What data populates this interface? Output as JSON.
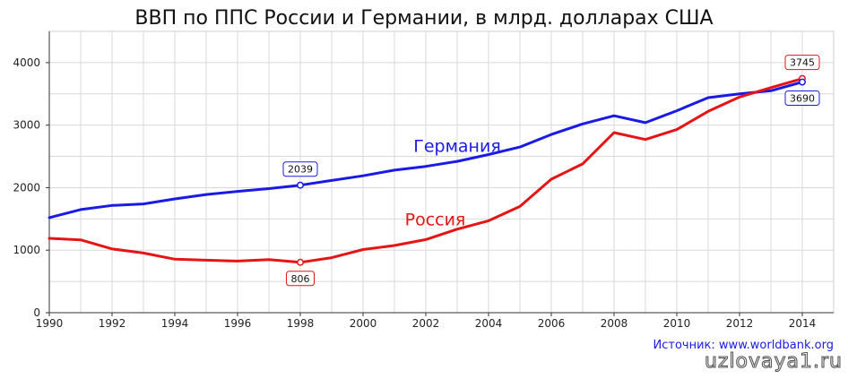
{
  "chart_data": {
    "type": "line",
    "title": "ВВП по ППС России и Германии, в млрд. долларах США",
    "xlabel": "",
    "ylabel": "",
    "xlim": [
      1990,
      2015
    ],
    "ylim": [
      0,
      4500
    ],
    "x_ticks": [
      "1990",
      "1992",
      "1994",
      "1996",
      "1998",
      "2000",
      "2002",
      "2004",
      "2006",
      "2008",
      "2010",
      "2012",
      "2014"
    ],
    "y_ticks": [
      "0",
      "1000",
      "2000",
      "3000",
      "4000"
    ],
    "grid": true,
    "legend": "none",
    "x": [
      1990,
      1991,
      1992,
      1993,
      1994,
      1995,
      1996,
      1997,
      1998,
      1999,
      2000,
      2001,
      2002,
      2003,
      2004,
      2005,
      2006,
      2007,
      2008,
      2009,
      2010,
      2011,
      2012,
      2013,
      2014
    ],
    "series": [
      {
        "name": "Германия",
        "color": "#1a1ae6",
        "values": [
          1520,
          1650,
          1715,
          1740,
          1820,
          1890,
          1940,
          1985,
          2039,
          2115,
          2190,
          2280,
          2340,
          2420,
          2530,
          2650,
          2850,
          3020,
          3150,
          3040,
          3230,
          3440,
          3500,
          3550,
          3690
        ]
      },
      {
        "name": "Россия",
        "color": "#e61414",
        "values": [
          1190,
          1165,
          1020,
          955,
          855,
          840,
          825,
          850,
          806,
          880,
          1010,
          1075,
          1170,
          1335,
          1470,
          1700,
          2135,
          2380,
          2880,
          2770,
          2930,
          3220,
          3450,
          3600,
          3745
        ]
      }
    ],
    "annotations": [
      {
        "series": 0,
        "x": 1998,
        "text": "2039",
        "position": "above"
      },
      {
        "series": 1,
        "x": 1998,
        "text": "806",
        "position": "below"
      },
      {
        "series": 1,
        "x": 2014,
        "text": "3745",
        "position": "above"
      },
      {
        "series": 0,
        "x": 2014,
        "text": "3690",
        "position": "below"
      }
    ]
  },
  "source_text": "Источник: www.worldbank.org",
  "watermark_text": "uzlovaya1.ru"
}
